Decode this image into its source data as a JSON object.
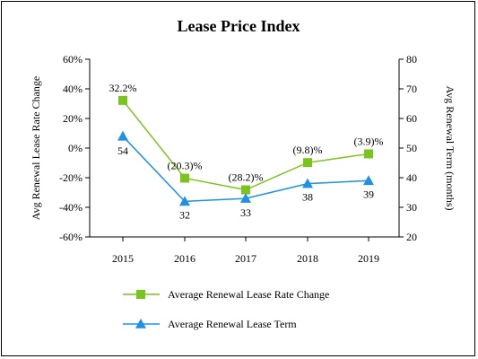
{
  "chart_data": {
    "type": "line",
    "title": "Lease Price Index",
    "categories": [
      "2015",
      "2016",
      "2017",
      "2018",
      "2019"
    ],
    "y_left": {
      "label": "Avg Renewal Lease Rate Change",
      "range": [
        -60,
        60
      ],
      "ticks": [
        -60,
        -40,
        -20,
        0,
        20,
        40,
        60
      ],
      "tick_labels": [
        "-60%",
        "-40%",
        "-20%",
        "0%",
        "20%",
        "40%",
        "60%"
      ]
    },
    "y_right": {
      "label": "Avg Renewal Term (months)",
      "range": [
        20,
        80
      ],
      "ticks": [
        20,
        30,
        40,
        50,
        60,
        70,
        80
      ],
      "tick_labels": [
        "20",
        "30",
        "40",
        "50",
        "60",
        "70",
        "80"
      ]
    },
    "series": [
      {
        "name": "Average Renewal Lease Rate Change",
        "axis": "left",
        "marker": "square",
        "color": "#7ac41e",
        "values": [
          32.2,
          -20.3,
          -28.2,
          -9.8,
          -3.9
        ],
        "data_labels": [
          "32.2%",
          "(20.3)%",
          "(28.2)%",
          "(9.8)%",
          "(3.9)%"
        ]
      },
      {
        "name": "Average Renewal Lease Term",
        "axis": "right",
        "marker": "triangle",
        "color": "#1e90e6",
        "values": [
          54,
          32,
          33,
          38,
          39
        ],
        "data_labels": [
          "54",
          "32",
          "33",
          "38",
          "39"
        ]
      }
    ],
    "grid": false,
    "legend_position": "bottom"
  }
}
